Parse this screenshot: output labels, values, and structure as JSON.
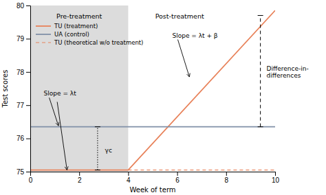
{
  "chart_data": {
    "type": "line",
    "xlabel": "Week of term",
    "ylabel": "Test scores",
    "xlim": [
      0,
      10
    ],
    "ylim": [
      75,
      80
    ],
    "xticks": [
      0,
      2,
      4,
      6,
      8,
      10
    ],
    "yticks": [
      75,
      76,
      77,
      78,
      79,
      80
    ],
    "grid": false,
    "legend": "upper left",
    "series": [
      {
        "name": "TU (treatment)",
        "color": "#E8825A",
        "line_style": "solid",
        "x": [
          0,
          4,
          10
        ],
        "values": [
          75.05,
          75.05,
          79.85
        ]
      },
      {
        "name": "UA (control)",
        "color": "#8090A8",
        "line_style": "solid",
        "x": [
          0,
          10
        ],
        "values": [
          76.35,
          76.35
        ]
      },
      {
        "name": "TU (theoretical w/o treatment)",
        "color": "#E8825A",
        "line_style": "dashed",
        "x": [
          4,
          10
        ],
        "values": [
          75.05,
          75.05
        ]
      }
    ],
    "shaded_region": {
      "x": [
        0,
        4
      ],
      "color": "#DCDCDC"
    },
    "brackets": [
      {
        "x": 2.75,
        "y": [
          75.05,
          76.35
        ],
        "line_style": "dotted"
      },
      {
        "x": 9.4,
        "y": [
          76.35,
          79.7
        ],
        "line_style": "dashed"
      }
    ],
    "region_labels": [
      {
        "text": "Pre-treatment",
        "x": 2.0,
        "y": 79.75
      },
      {
        "text": "Post-treatment",
        "x": 6.1,
        "y": 79.75
      }
    ],
    "annotations": [
      {
        "text": "γc",
        "x": 3.05,
        "y": 75.65
      },
      {
        "text": "Difference-in-\ndifferences",
        "x": 9.65,
        "y": 78.0
      },
      {
        "text": "Slope = λt",
        "x": 0.55,
        "y": 77.35,
        "arrows": [
          {
            "to": [
              1.15,
              76.38
            ]
          },
          {
            "from": [
              1.1,
              77.1
            ],
            "to": [
              1.5,
              75.05
            ]
          }
        ]
      },
      {
        "text": "Slope = λt + β",
        "x": 5.8,
        "y": 79.1,
        "arrows": [
          {
            "to": [
              6.5,
              77.85
            ]
          }
        ]
      }
    ]
  }
}
